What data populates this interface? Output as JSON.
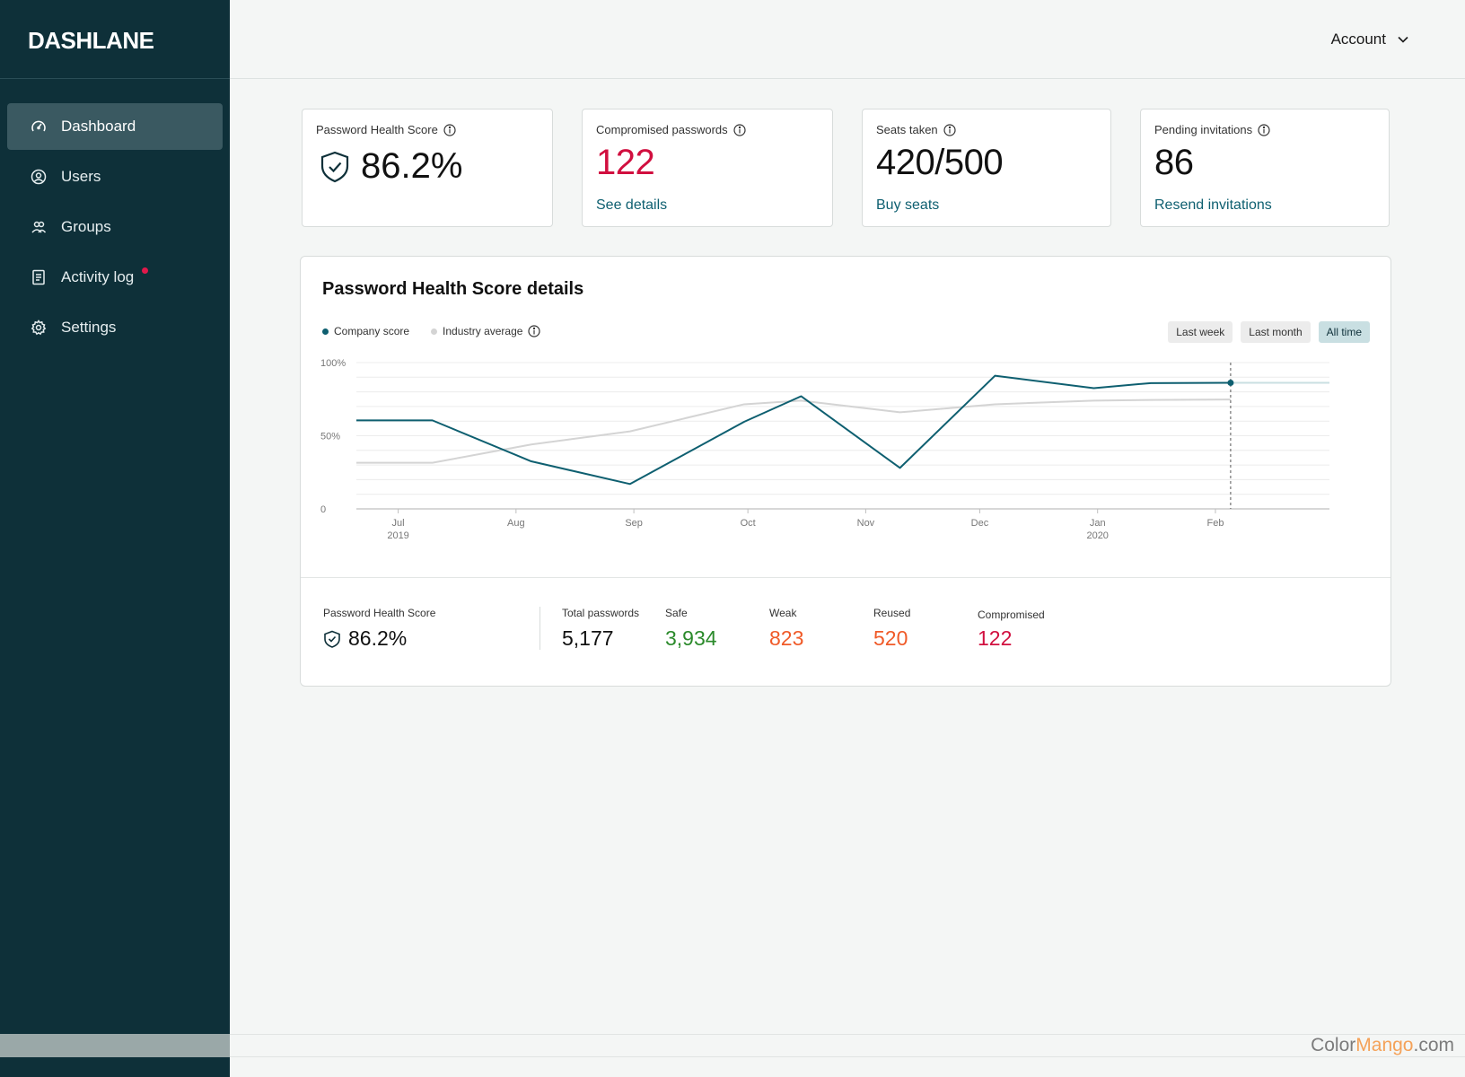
{
  "app": {
    "logo": "DASHLANE"
  },
  "sidebar": {
    "items": [
      {
        "label": "Dashboard",
        "icon": "speedometer-icon",
        "active": true
      },
      {
        "label": "Users",
        "icon": "user-icon"
      },
      {
        "label": "Groups",
        "icon": "group-icon"
      },
      {
        "label": "Activity log",
        "icon": "document-icon",
        "badge": "notification-dot"
      },
      {
        "label": "Settings",
        "icon": "gear-icon"
      }
    ]
  },
  "header": {
    "account_label": "Account"
  },
  "stats": {
    "health": {
      "label": "Password Health Score",
      "value": "86.2%"
    },
    "compromised": {
      "label": "Compromised passwords",
      "value": "122",
      "link": "See details"
    },
    "seats": {
      "label": "Seats taken",
      "value": "420/500",
      "link": "Buy seats"
    },
    "pending": {
      "label": "Pending invitations",
      "value": "86",
      "link": "Resend invitations"
    }
  },
  "chart_panel": {
    "title": "Password Health Score details",
    "legend": {
      "company": "Company score",
      "industry": "Industry average"
    },
    "ranges": [
      "Last week",
      "Last month",
      "All time"
    ],
    "selected_range": "All time"
  },
  "chart_data": {
    "type": "line",
    "x_tick_labels": [
      {
        "line1": "Jul",
        "line2": "2019"
      },
      {
        "line1": "Aug",
        "line2": ""
      },
      {
        "line1": "Sep",
        "line2": ""
      },
      {
        "line1": "Oct",
        "line2": ""
      },
      {
        "line1": "Nov",
        "line2": ""
      },
      {
        "line1": "Dec",
        "line2": ""
      },
      {
        "line1": "Jan",
        "line2": "2020"
      },
      {
        "line1": "Feb",
        "line2": ""
      }
    ],
    "y_ticks": [
      "100%",
      "50%",
      "0"
    ],
    "ylim": [
      0,
      100
    ],
    "x": [
      "2019-06-20",
      "2019-07-10",
      "2019-08-05",
      "2019-08-31",
      "2019-09-30",
      "2019-10-15",
      "2019-11-10",
      "2019-12-05",
      "2019-12-31",
      "2020-01-15",
      "2020-02-05",
      "2020-02-20"
    ],
    "series": [
      {
        "name": "Company score",
        "color": "#0e5f70",
        "values": [
          60.5,
          60.5,
          32.5,
          17,
          59.5,
          77,
          28,
          91,
          82.5,
          86,
          86.2,
          86.2
        ]
      },
      {
        "name": "Industry average",
        "color": "#d4d4d4",
        "values": [
          31.5,
          31.5,
          44,
          53,
          71.5,
          74,
          66,
          71.5,
          74,
          74.5,
          74.8,
          86.2
        ]
      }
    ],
    "current_marker": "2020-02-05",
    "grid": true
  },
  "summary": {
    "health": {
      "label": "Password Health Score",
      "value": "86.2%"
    },
    "total": {
      "label": "Total passwords",
      "value": "5,177"
    },
    "safe": {
      "label": "Safe",
      "value": "3,934",
      "color": "#2b8a2b"
    },
    "weak": {
      "label": "Weak",
      "value": "823",
      "color": "#f05a28"
    },
    "reused": {
      "label": "Reused",
      "value": "520",
      "color": "#f05a28"
    },
    "compromised": {
      "label": "Compromised",
      "value": "122",
      "color": "#d10f3f"
    }
  },
  "watermark": {
    "prefix": "Color",
    "accent": "Mango",
    "suffix": ".com"
  }
}
